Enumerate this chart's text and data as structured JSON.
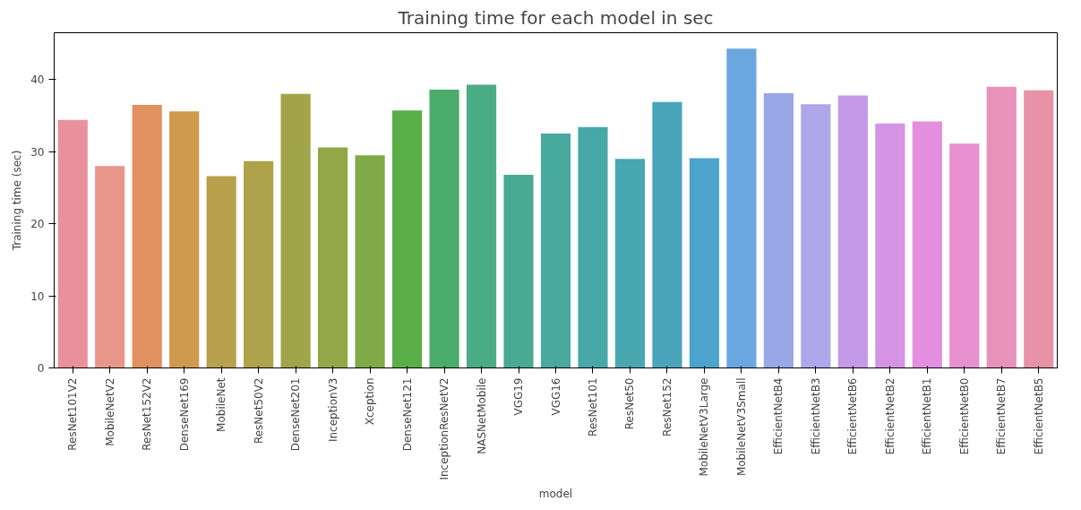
{
  "chart_data": {
    "type": "bar",
    "title": "Training time for each model in sec",
    "xlabel": "model",
    "ylabel": "Training time (sec)",
    "categories": [
      "ResNet101V2",
      "MobileNetV2",
      "ResNet152V2",
      "DenseNet169",
      "MobileNet",
      "ResNet50V2",
      "DenseNet201",
      "InceptionV3",
      "Xception",
      "DenseNet121",
      "InceptionResNetV2",
      "NASNetMobile",
      "VGG19",
      "VGG16",
      "ResNet101",
      "ResNet50",
      "ResNet152",
      "MobileNetV3Large",
      "MobileNetV3Small",
      "EfficientNetB4",
      "EfficientNetB3",
      "EfficientNetB6",
      "EfficientNetB2",
      "EfficientNetB1",
      "EfficientNetB0",
      "EfficientNetB7",
      "EfficientNetB5"
    ],
    "values": [
      34.4,
      28.0,
      36.5,
      35.6,
      26.6,
      28.7,
      38.0,
      30.6,
      29.5,
      35.7,
      38.6,
      39.3,
      26.8,
      32.5,
      33.4,
      29.0,
      36.9,
      29.1,
      44.3,
      38.1,
      36.6,
      37.8,
      33.9,
      34.2,
      31.1,
      39.0,
      38.5
    ],
    "colors": [
      "#e8919c",
      "#e8968a",
      "#e0915f",
      "#d09a4e",
      "#b8a04c",
      "#aea24a",
      "#a1a448",
      "#93a648",
      "#80a948",
      "#5aae48",
      "#4bac6c",
      "#4aac85",
      "#48aa95",
      "#48a99f",
      "#48a8a7",
      "#49a7b0",
      "#4aa5bb",
      "#4ca3cb",
      "#6aa7e0",
      "#98a7e6",
      "#b0a6ea",
      "#c49ae8",
      "#d594e3",
      "#e38ede",
      "#e890d0",
      "#e891bb",
      "#e892a8"
    ],
    "ylim": [
      0,
      46.5
    ],
    "yticks": [
      0,
      10,
      20,
      30,
      40
    ],
    "grid": false
  }
}
